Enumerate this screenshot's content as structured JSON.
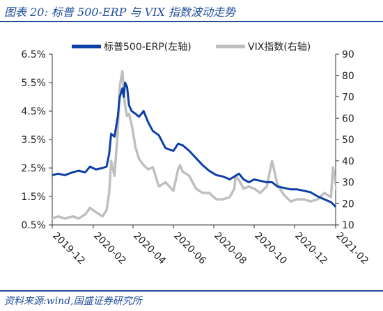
{
  "header": {
    "title": "图表 20:  标普 500-ERP 与 VIX 指数波动走势"
  },
  "footer": {
    "source": "资料来源:wind,国盛证券研究所"
  },
  "colors": {
    "erp": "#0d3fa6",
    "vix": "#bfbfbf",
    "accent": "#1f4e9a"
  },
  "chart_data": {
    "type": "line",
    "legend_position": "top",
    "grid": false,
    "x_start": "2019-12",
    "x_end": "2021-02",
    "x_ticks": [
      "2019-12",
      "2020-02",
      "2020-04",
      "2020-06",
      "2020-08",
      "2020-10",
      "2020-12",
      "2021-02"
    ],
    "y_left": {
      "ticks": [
        "0.5%",
        "1.5%",
        "2.5%",
        "3.5%",
        "4.5%",
        "5.5%",
        "6.5%"
      ],
      "range": [
        0.5,
        6.5
      ]
    },
    "y_right": {
      "ticks": [
        "10",
        "20",
        "30",
        "40",
        "50",
        "60",
        "70",
        "80",
        "90"
      ],
      "range": [
        10,
        90
      ]
    },
    "series": [
      {
        "name": "标普500-ERP(左轴)",
        "axis": "left",
        "x": [
          "2019-11-20",
          "2019-12-01",
          "2019-12-10",
          "2019-12-20",
          "2020-01-01",
          "2020-01-10",
          "2020-01-20",
          "2020-01-27",
          "2020-02-05",
          "2020-02-15",
          "2020-02-21",
          "2020-02-25",
          "2020-02-28",
          "2020-03-04",
          "2020-03-09",
          "2020-03-12",
          "2020-03-16",
          "2020-03-18",
          "2020-03-20",
          "2020-03-23",
          "2020-03-26",
          "2020-03-30",
          "2020-04-05",
          "2020-04-10",
          "2020-04-17",
          "2020-04-24",
          "2020-05-01",
          "2020-05-10",
          "2020-05-20",
          "2020-06-01",
          "2020-06-08",
          "2020-06-15",
          "2020-06-25",
          "2020-07-05",
          "2020-07-15",
          "2020-07-25",
          "2020-08-05",
          "2020-08-15",
          "2020-08-25",
          "2020-09-01",
          "2020-09-08",
          "2020-09-15",
          "2020-09-23",
          "2020-10-01",
          "2020-10-10",
          "2020-10-20",
          "2020-10-28",
          "2020-11-05",
          "2020-11-15",
          "2020-11-25",
          "2020-12-05",
          "2020-12-15",
          "2020-12-25",
          "2021-01-05",
          "2021-01-15",
          "2021-01-25",
          "2021-02-05",
          "2021-02-15",
          "2021-02-25",
          "2021-03-01"
        ],
        "values": [
          2.25,
          2.25,
          2.3,
          2.25,
          2.35,
          2.4,
          2.35,
          2.55,
          2.45,
          2.5,
          2.55,
          3.0,
          3.7,
          3.6,
          4.3,
          5.0,
          5.3,
          5.0,
          5.5,
          5.35,
          4.7,
          4.5,
          4.4,
          4.3,
          4.5,
          4.1,
          3.8,
          3.65,
          3.2,
          3.1,
          3.35,
          3.3,
          3.1,
          2.85,
          2.6,
          2.4,
          2.25,
          2.2,
          2.1,
          2.2,
          2.3,
          2.1,
          2.0,
          2.1,
          2.05,
          2.0,
          2.0,
          1.85,
          1.8,
          1.75,
          1.75,
          1.7,
          1.65,
          1.5,
          1.4,
          1.3,
          1.05,
          0.85,
          0.8,
          0.95
        ]
      },
      {
        "name": "VIX指数(右轴)",
        "axis": "right",
        "x": [
          "2019-11-20",
          "2019-12-01",
          "2019-12-10",
          "2019-12-20",
          "2020-01-01",
          "2020-01-10",
          "2020-01-20",
          "2020-01-27",
          "2020-02-05",
          "2020-02-15",
          "2020-02-21",
          "2020-02-25",
          "2020-02-28",
          "2020-03-04",
          "2020-03-09",
          "2020-03-12",
          "2020-03-16",
          "2020-03-18",
          "2020-03-20",
          "2020-03-23",
          "2020-03-26",
          "2020-03-30",
          "2020-04-05",
          "2020-04-10",
          "2020-04-17",
          "2020-04-24",
          "2020-05-01",
          "2020-05-10",
          "2020-05-20",
          "2020-06-01",
          "2020-06-08",
          "2020-06-11",
          "2020-06-15",
          "2020-06-25",
          "2020-07-05",
          "2020-07-15",
          "2020-07-25",
          "2020-08-05",
          "2020-08-15",
          "2020-08-25",
          "2020-09-01",
          "2020-09-03",
          "2020-09-08",
          "2020-09-15",
          "2020-09-23",
          "2020-10-01",
          "2020-10-10",
          "2020-10-20",
          "2020-10-28",
          "2020-11-05",
          "2020-11-15",
          "2020-11-25",
          "2020-12-05",
          "2020-12-15",
          "2020-12-25",
          "2021-01-05",
          "2021-01-15",
          "2021-01-25",
          "2021-01-28",
          "2021-02-05",
          "2021-02-15",
          "2021-02-25",
          "2021-03-01"
        ],
        "values": [
          13,
          13,
          14,
          13,
          14,
          13,
          15,
          18,
          16,
          14,
          17,
          25,
          40,
          33,
          54,
          75,
          82,
          72,
          66,
          61,
          62,
          57,
          46,
          41,
          38,
          36,
          37,
          28,
          30,
          26,
          36,
          38,
          35,
          33,
          27,
          25,
          25,
          22,
          22,
          23,
          27,
          33,
          31,
          27,
          28,
          27,
          25,
          28,
          40,
          29,
          24,
          21,
          22,
          22,
          21,
          22,
          25,
          23,
          37,
          22,
          20,
          23,
          21
        ]
      }
    ]
  }
}
